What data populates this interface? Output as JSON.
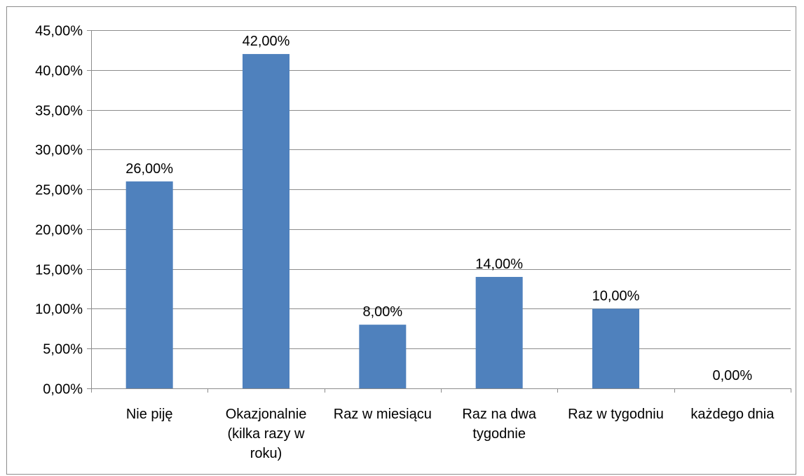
{
  "chart_data": {
    "type": "bar",
    "categories": [
      [
        "Nie piję"
      ],
      [
        "Okazjonalnie",
        "(kilka razy w",
        "roku)"
      ],
      [
        "Raz w miesiącu"
      ],
      [
        "Raz na dwa",
        "tygodnie"
      ],
      [
        "Raz w tygodniu"
      ],
      [
        "każdego dnia"
      ]
    ],
    "values": [
      26,
      42,
      8,
      14,
      10,
      0
    ],
    "data_labels": [
      "26,00%",
      "42,00%",
      "8,00%",
      "14,00%",
      "10,00%",
      "0,00%"
    ],
    "y_ticks": [
      "0,00%",
      "5,00%",
      "10,00%",
      "15,00%",
      "20,00%",
      "25,00%",
      "30,00%",
      "35,00%",
      "40,00%",
      "45,00%"
    ],
    "ylim": [
      0,
      45
    ],
    "grid": true,
    "legend": "none",
    "bar_color": "#4f81bd",
    "grid_color": "#8c8c8c"
  }
}
